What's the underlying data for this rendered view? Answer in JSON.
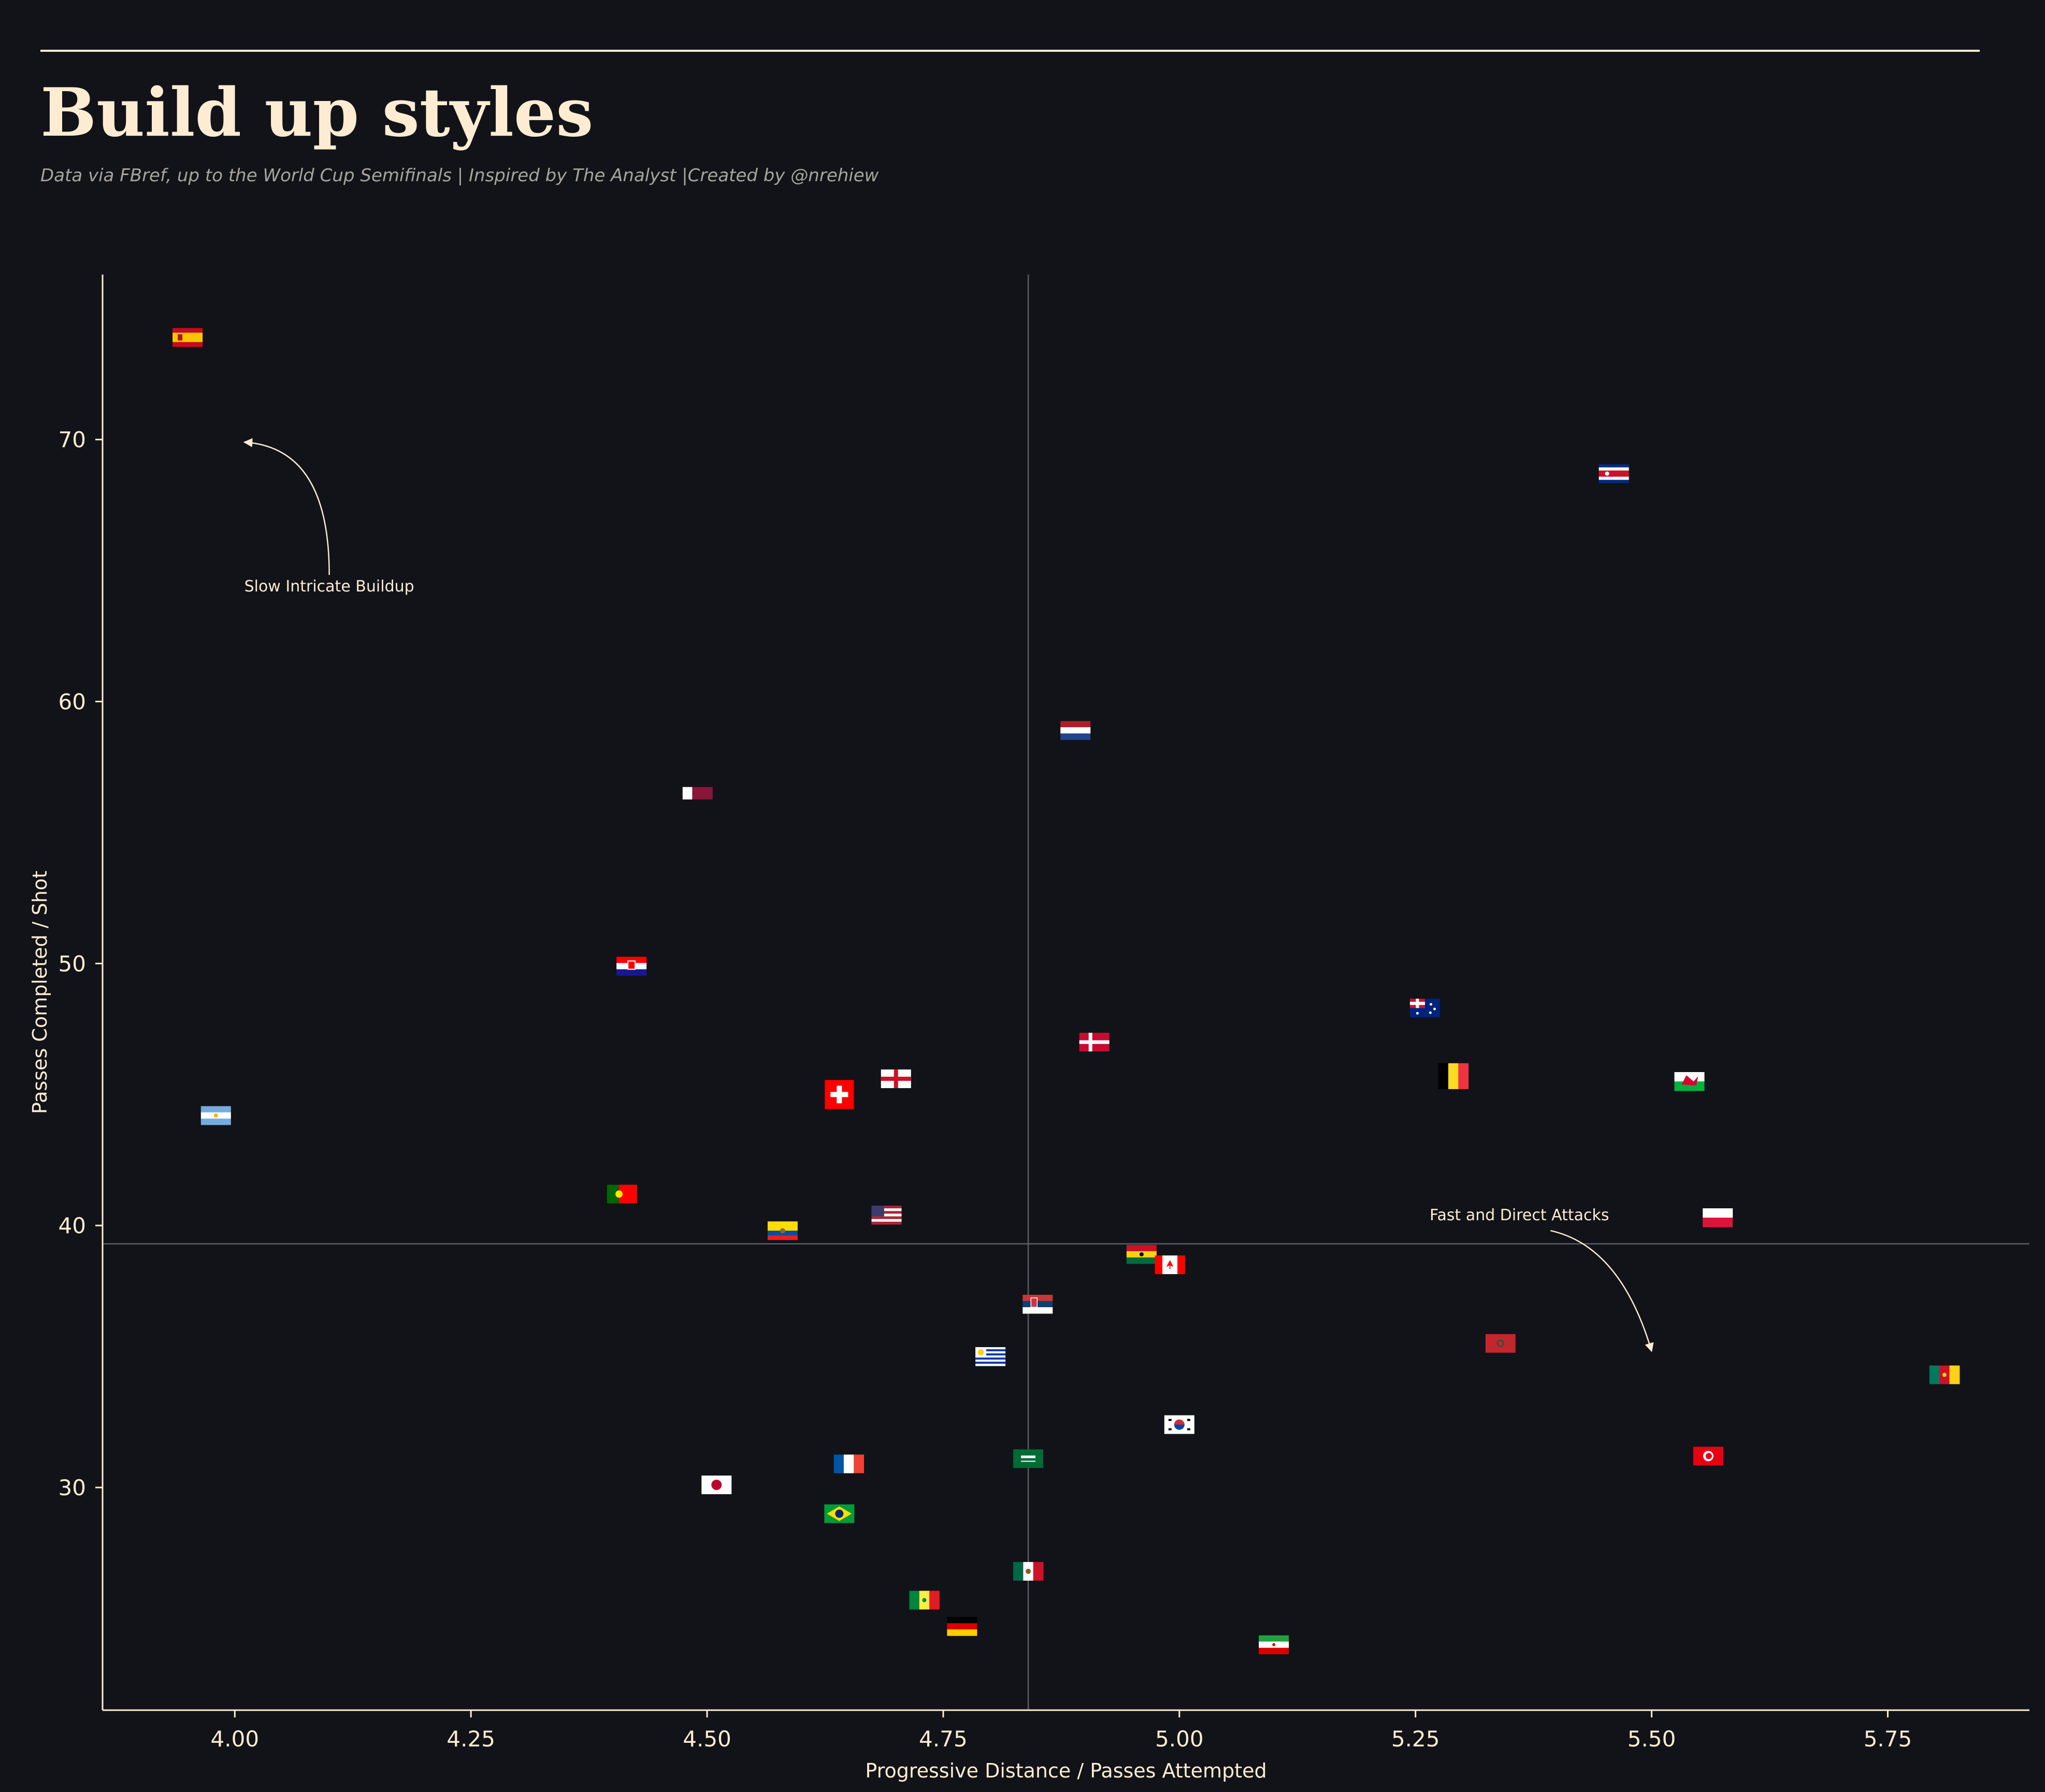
{
  "chart_data": {
    "type": "scatter",
    "title": "Build up styles",
    "subtitle": "Data via FBref, up to the World Cup Semifinals  |  Inspired by The Analyst  |Created by @nrehiew",
    "xlabel": "Progressive Distance / Passes Attempted",
    "ylabel": "Passes Completed / Shot",
    "xlim": [
      3.86,
      5.9
    ],
    "ylim": [
      21.5,
      76.3
    ],
    "xticks": [
      "4.00",
      "4.25",
      "4.50",
      "4.75",
      "5.00",
      "5.25",
      "5.50",
      "5.75"
    ],
    "xtick_values": [
      4.0,
      4.25,
      4.5,
      4.75,
      5.0,
      5.25,
      5.5,
      5.75
    ],
    "yticks": [
      "30",
      "40",
      "50",
      "60",
      "70"
    ],
    "ytick_values": [
      30,
      40,
      50,
      60,
      70
    ],
    "mean_x": 4.84,
    "mean_y": 39.3,
    "grid": false,
    "annotations": [
      {
        "text": "Slow Intricate Buildup",
        "text_x": 4.1,
        "text_y": 64.2,
        "arrow_to_x": 4.01,
        "arrow_to_y": 69.9
      },
      {
        "text": "Fast and Direct Attacks",
        "text_x": 5.36,
        "text_y": 40.2,
        "arrow_to_x": 5.5,
        "arrow_to_y": 35.2
      }
    ],
    "points": [
      {
        "team": "Spain",
        "flag": "spain",
        "x": 3.95,
        "y": 73.9
      },
      {
        "team": "Costa Rica",
        "flag": "costa-rica",
        "x": 5.46,
        "y": 68.7
      },
      {
        "team": "Netherlands",
        "flag": "netherlands",
        "x": 4.89,
        "y": 58.9
      },
      {
        "team": "Qatar",
        "flag": "qatar",
        "x": 4.49,
        "y": 56.5
      },
      {
        "team": "Croatia",
        "flag": "croatia",
        "x": 4.42,
        "y": 49.9
      },
      {
        "team": "Australia",
        "flag": "australia",
        "x": 5.26,
        "y": 48.3
      },
      {
        "team": "Denmark",
        "flag": "denmark",
        "x": 4.91,
        "y": 47.0
      },
      {
        "team": "Belgium",
        "flag": "belgium",
        "x": 5.29,
        "y": 45.7
      },
      {
        "team": "England",
        "flag": "england",
        "x": 4.7,
        "y": 45.6
      },
      {
        "team": "Wales",
        "flag": "wales",
        "x": 5.54,
        "y": 45.5
      },
      {
        "team": "Switzerland",
        "flag": "switzerland",
        "x": 4.64,
        "y": 45.0
      },
      {
        "team": "Argentina",
        "flag": "argentina",
        "x": 3.98,
        "y": 44.2
      },
      {
        "team": "Portugal",
        "flag": "portugal",
        "x": 4.41,
        "y": 41.2
      },
      {
        "team": "USA",
        "flag": "usa",
        "x": 4.69,
        "y": 40.4
      },
      {
        "team": "Poland",
        "flag": "poland",
        "x": 5.57,
        "y": 40.3
      },
      {
        "team": "Ecuador",
        "flag": "ecuador",
        "x": 4.58,
        "y": 39.8
      },
      {
        "team": "Ghana",
        "flag": "ghana",
        "x": 4.96,
        "y": 38.9
      },
      {
        "team": "Canada",
        "flag": "canada",
        "x": 4.99,
        "y": 38.5
      },
      {
        "team": "Serbia",
        "flag": "serbia",
        "x": 4.85,
        "y": 37.0
      },
      {
        "team": "Morocco",
        "flag": "morocco",
        "x": 5.34,
        "y": 35.5
      },
      {
        "team": "Uruguay",
        "flag": "uruguay",
        "x": 4.8,
        "y": 35.0
      },
      {
        "team": "Cameroon",
        "flag": "cameroon",
        "x": 5.81,
        "y": 34.3
      },
      {
        "team": "South Korea",
        "flag": "south-korea",
        "x": 5.0,
        "y": 32.4
      },
      {
        "team": "Tunisia",
        "flag": "tunisia",
        "x": 5.56,
        "y": 31.2
      },
      {
        "team": "Saudi Arabia",
        "flag": "saudi-arabia",
        "x": 4.84,
        "y": 31.1
      },
      {
        "team": "France",
        "flag": "france",
        "x": 4.65,
        "y": 30.9
      },
      {
        "team": "Japan",
        "flag": "japan",
        "x": 4.51,
        "y": 30.1
      },
      {
        "team": "Brazil",
        "flag": "brazil",
        "x": 4.64,
        "y": 29.0
      },
      {
        "team": "Mexico",
        "flag": "mexico",
        "x": 4.84,
        "y": 26.8
      },
      {
        "team": "Senegal",
        "flag": "senegal",
        "x": 4.73,
        "y": 25.7
      },
      {
        "team": "Germany",
        "flag": "germany",
        "x": 4.77,
        "y": 24.7
      },
      {
        "team": "Iran",
        "flag": "iran",
        "x": 5.1,
        "y": 24.0
      }
    ]
  },
  "colors": {
    "background": "#111318",
    "foreground": "#FDECD2",
    "subtitle": "#A8A49C",
    "mean_line": "#5A5D63"
  }
}
